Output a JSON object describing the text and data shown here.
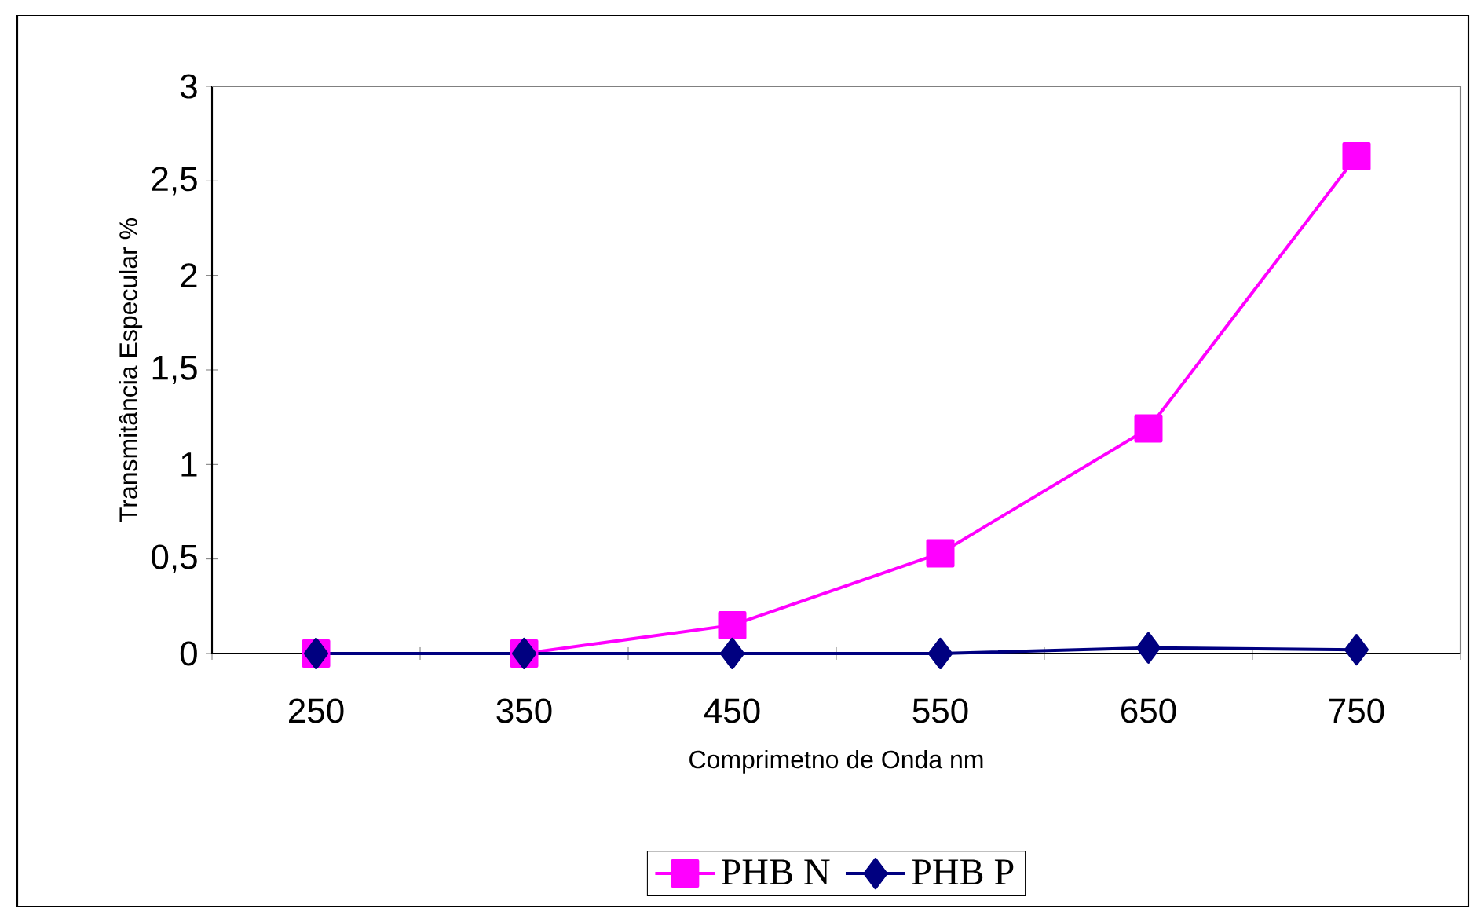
{
  "chart_data": {
    "type": "line",
    "xlabel": "Comprimetno de Onda nm",
    "ylabel": "Transmitância Especular %",
    "categories": [
      "250",
      "350",
      "450",
      "550",
      "650",
      "750"
    ],
    "series": [
      {
        "name": "PHB N",
        "color": "#ff00ff",
        "marker": "square",
        "values": [
          0,
          0,
          0.15,
          0.53,
          1.19,
          2.63
        ]
      },
      {
        "name": "PHB P",
        "color": "#000080",
        "marker": "diamond",
        "values": [
          0,
          0,
          0,
          0,
          0.03,
          0.02
        ]
      }
    ],
    "ylim": [
      0,
      3
    ],
    "yticks": [
      0,
      {
        "value": 0.5,
        "label": "0,5"
      },
      1,
      {
        "value": 1.5,
        "label": "1,5"
      },
      2,
      {
        "value": 2.5,
        "label": "2,5"
      },
      3
    ],
    "grid": false,
    "legend": "bottom",
    "line_style": "solid"
  }
}
